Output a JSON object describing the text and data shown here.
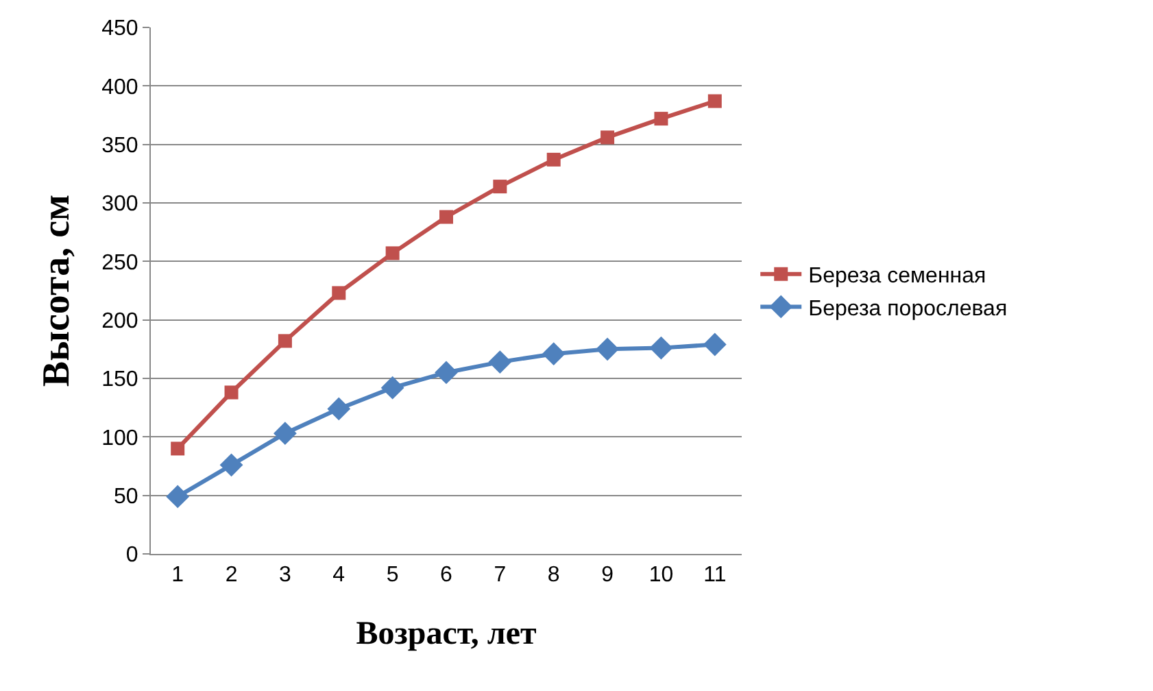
{
  "chart_data": {
    "type": "line",
    "xlabel": "Возраст, лет",
    "ylabel": "Высота, см",
    "categories": [
      "1",
      "2",
      "3",
      "4",
      "5",
      "6",
      "7",
      "8",
      "9",
      "10",
      "11"
    ],
    "series": [
      {
        "name": "Береза семенная",
        "color": "#c0504d",
        "marker": "square",
        "values": [
          90,
          138,
          182,
          223,
          257,
          288,
          314,
          337,
          356,
          372,
          387
        ]
      },
      {
        "name": "Береза порослевая",
        "color": "#4f81bd",
        "marker": "diamond",
        "values": [
          49,
          76,
          103,
          124,
          142,
          155,
          164,
          171,
          175,
          176,
          179
        ]
      }
    ],
    "ylim": [
      0,
      450
    ],
    "yticks": [
      0,
      50,
      100,
      150,
      200,
      250,
      300,
      350,
      400,
      450
    ],
    "grid": "y",
    "legend": "right"
  }
}
